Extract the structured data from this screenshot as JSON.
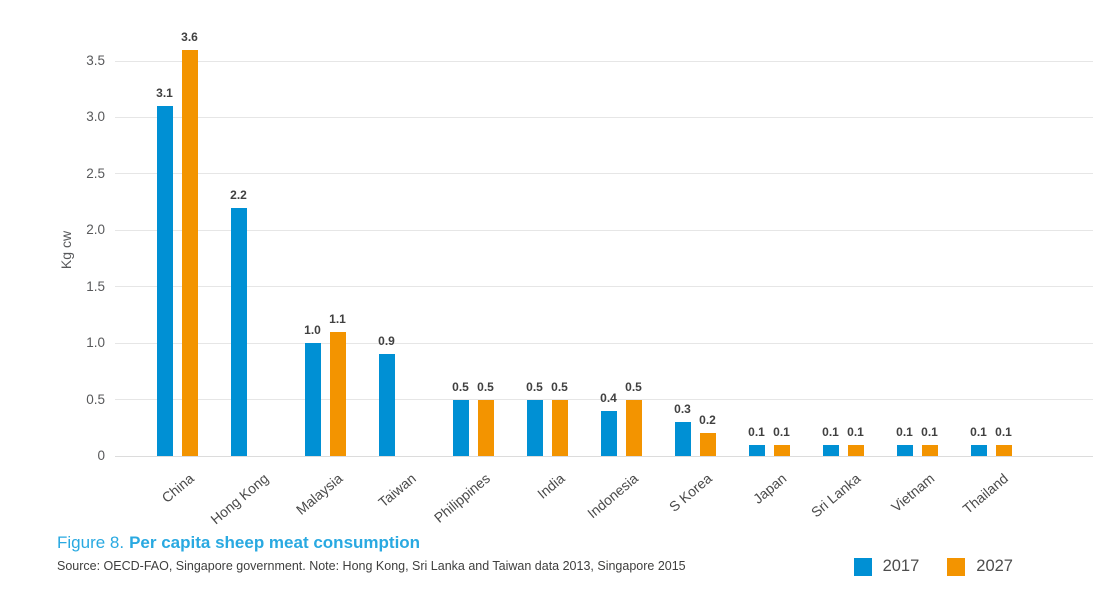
{
  "figure": {
    "caption_prefix": "Figure 8.",
    "caption_title": "Per capita sheep meat consumption",
    "source_note": "Source: OECD-FAO, Singapore government. Note: Hong Kong, Sri Lanka and Taiwan data 2013, Singapore 2015"
  },
  "colors": {
    "series_2017": "#0090D4",
    "series_2027": "#F39400",
    "caption_blue": "#29A9E1",
    "grid": "#E6E6E6",
    "label_text": "#404040",
    "axis_text": "#58595B"
  },
  "chart_data": {
    "type": "bar",
    "title": "Per capita sheep meat consumption",
    "xlabel": "",
    "ylabel": "Kg cw",
    "ylim": [
      0,
      3.5
    ],
    "yticks": [
      3.5,
      3.0,
      2.5,
      2.0,
      1.5,
      1.0,
      0.5,
      0
    ],
    "grid": true,
    "data_labels": true,
    "legend_position": "bottom-right",
    "categories": [
      "China",
      "Hong Kong",
      "Malaysia",
      "Taiwan",
      "Philippines",
      "India",
      "Indonesia",
      "S Korea",
      "Japan",
      "Sri Lanka",
      "Vietnam",
      "Thailand"
    ],
    "series": [
      {
        "name": "2017",
        "color": "#0090D4",
        "values": [
          3.1,
          2.2,
          1.0,
          0.9,
          0.5,
          0.5,
          0.4,
          0.3,
          0.1,
          0.1,
          0.1,
          0.1
        ]
      },
      {
        "name": "2027",
        "color": "#F39400",
        "values": [
          3.6,
          null,
          1.1,
          null,
          0.5,
          0.5,
          0.5,
          0.2,
          0.1,
          0.1,
          0.1,
          0.1
        ]
      }
    ]
  }
}
